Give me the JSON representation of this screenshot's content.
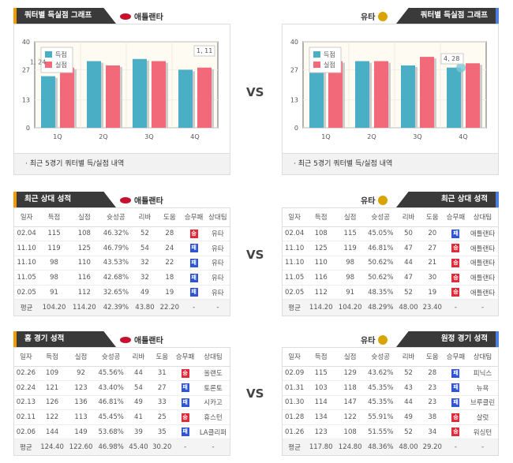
{
  "vs": "VS",
  "left_team": "애틀랜타",
  "right_team": "유타",
  "colors": {
    "score": "#4aafc4",
    "lost": "#f2697a",
    "win": "#e02a3a",
    "loss": "#2f55d4",
    "accent_left": "#f39a00",
    "accent_right": "#4a7fe0"
  },
  "chart_title": "쿼터별 득실점 그래프",
  "chart_footer": "· 최근 5경기 쿼터별 득/실점 내역",
  "chart_data": [
    {
      "type": "bar",
      "title": "쿼터별 득실점 그래프",
      "team": "애틀랜타",
      "categories": [
        "1Q",
        "2Q",
        "3Q",
        "4Q"
      ],
      "yticks": [
        "0",
        "13",
        "27",
        "40"
      ],
      "ylim": [
        0,
        40
      ],
      "legend": [
        "득점",
        "실점"
      ],
      "legend_position": "top-left",
      "series": [
        {
          "name": "득점",
          "values": [
            24,
            31,
            32,
            27
          ]
        },
        {
          "name": "실점",
          "values": [
            28,
            29,
            31,
            28
          ]
        }
      ],
      "tooltips": [
        "1, 24",
        "1, 11"
      ]
    },
    {
      "type": "bar",
      "title": "쿼터별 득실점 그래프",
      "team": "유타",
      "categories": [
        "1Q",
        "2Q",
        "3Q",
        "4Q"
      ],
      "yticks": [
        "0",
        "13",
        "27",
        "40"
      ],
      "ylim": [
        0,
        40
      ],
      "legend": [
        "득점",
        "실점"
      ],
      "legend_position": "top-left",
      "series": [
        {
          "name": "득점",
          "values": [
            30,
            31,
            29,
            28
          ]
        },
        {
          "name": "실점",
          "values": [
            31,
            31,
            33,
            30
          ]
        }
      ],
      "tooltips": [
        "4, 28"
      ]
    }
  ],
  "columns": [
    "일자",
    "득점",
    "실점",
    "슛성공",
    "리바",
    "도움",
    "승무패",
    "상대팀"
  ],
  "recent_title": "최근 상대 성적",
  "home_title": "홈 경기 성적",
  "away_title": "원정 경기 성적",
  "tables": {
    "left_recent": {
      "rows": [
        [
          "02.04",
          "115",
          "108",
          "46.32%",
          "52",
          "28",
          "승",
          "유타"
        ],
        [
          "11.10",
          "119",
          "125",
          "46.79%",
          "54",
          "24",
          "패",
          "유타"
        ],
        [
          "11.10",
          "98",
          "110",
          "43.53%",
          "32",
          "22",
          "패",
          "유타"
        ],
        [
          "11.05",
          "98",
          "116",
          "42.68%",
          "32",
          "18",
          "패",
          "유타"
        ],
        [
          "02.05",
          "91",
          "112",
          "32.65%",
          "49",
          "19",
          "패",
          "유타"
        ]
      ],
      "avg": [
        "평균",
        "104.20",
        "114.20",
        "42.39%",
        "43.80",
        "22.20",
        "-",
        "-"
      ]
    },
    "right_recent": {
      "rows": [
        [
          "02.04",
          "108",
          "115",
          "45.05%",
          "50",
          "20",
          "패",
          "애틀랜타"
        ],
        [
          "11.10",
          "125",
          "119",
          "46.81%",
          "47",
          "27",
          "승",
          "애틀랜타"
        ],
        [
          "11.10",
          "110",
          "98",
          "50.62%",
          "44",
          "21",
          "승",
          "애틀랜타"
        ],
        [
          "11.05",
          "116",
          "98",
          "50.62%",
          "47",
          "30",
          "승",
          "애틀랜타"
        ],
        [
          "02.05",
          "112",
          "91",
          "48.35%",
          "52",
          "19",
          "승",
          "애틀랜타"
        ]
      ],
      "avg": [
        "평균",
        "114.20",
        "104.20",
        "48.29%",
        "48.00",
        "23.40",
        "-",
        "-"
      ]
    },
    "left_home": {
      "rows": [
        [
          "02.26",
          "109",
          "92",
          "45.56%",
          "44",
          "31",
          "승",
          "올랜도"
        ],
        [
          "02.24",
          "121",
          "123",
          "43.40%",
          "54",
          "27",
          "패",
          "토론토"
        ],
        [
          "02.13",
          "126",
          "136",
          "46.81%",
          "49",
          "33",
          "패",
          "시카고"
        ],
        [
          "02.11",
          "122",
          "113",
          "45.45%",
          "41",
          "25",
          "승",
          "휴스턴"
        ],
        [
          "02.06",
          "144",
          "149",
          "53.68%",
          "39",
          "35",
          "패",
          "LA클리퍼"
        ]
      ],
      "avg": [
        "평균",
        "124.40",
        "122.60",
        "46.98%",
        "45.40",
        "30.20",
        "-",
        "-"
      ]
    },
    "right_away": {
      "rows": [
        [
          "02.09",
          "115",
          "129",
          "43.62%",
          "52",
          "28",
          "패",
          "피닉스"
        ],
        [
          "01.31",
          "103",
          "118",
          "45.35%",
          "43",
          "23",
          "패",
          "뉴욕"
        ],
        [
          "01.30",
          "114",
          "147",
          "45.35%",
          "44",
          "23",
          "패",
          "브루클린"
        ],
        [
          "01.28",
          "134",
          "122",
          "55.91%",
          "49",
          "38",
          "승",
          "샬럿"
        ],
        [
          "01.26",
          "123",
          "108",
          "51.55%",
          "52",
          "34",
          "승",
          "워싱턴"
        ]
      ],
      "avg": [
        "평균",
        "117.80",
        "124.80",
        "48.36%",
        "48.00",
        "29.20",
        "-",
        "-"
      ]
    }
  }
}
